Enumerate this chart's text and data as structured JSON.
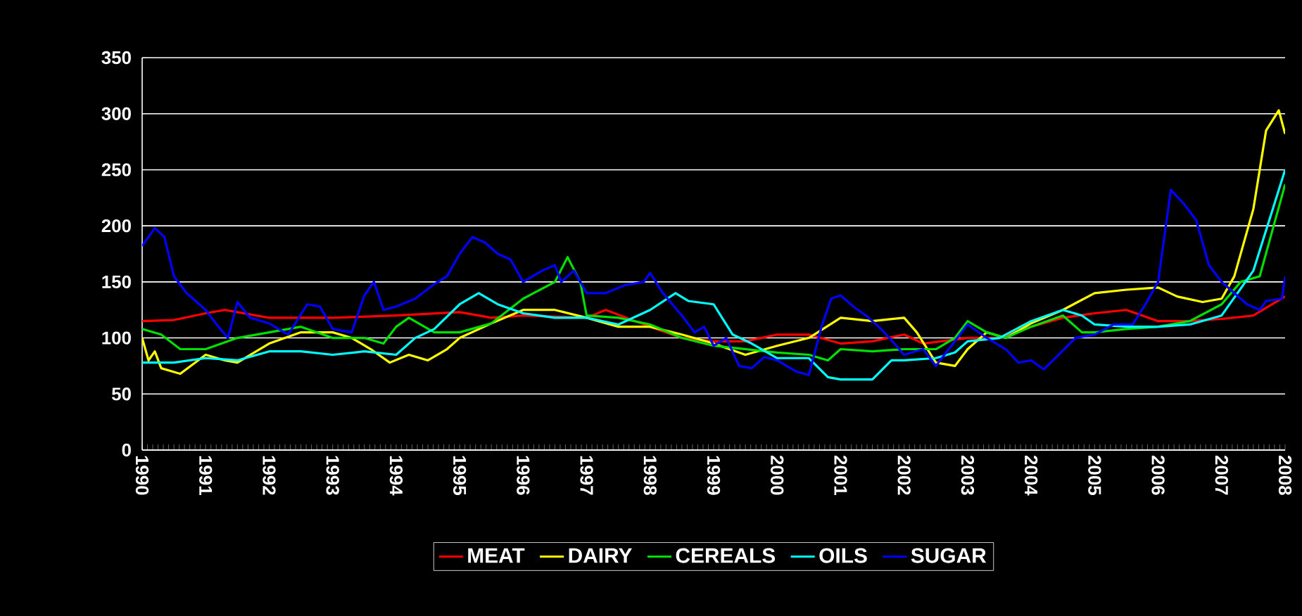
{
  "chart_data": {
    "type": "line",
    "xlim": [
      1990,
      2008
    ],
    "ylim": [
      0,
      350
    ],
    "xticks": [
      1990,
      1991,
      1992,
      1993,
      1994,
      1995,
      1996,
      1997,
      1998,
      1999,
      2000,
      2001,
      2002,
      2003,
      2004,
      2005,
      2006,
      2007,
      2008
    ],
    "yticks": [
      0,
      50,
      100,
      150,
      200,
      250,
      300,
      350
    ],
    "grid": "y",
    "legend": "bottom",
    "marker": "none",
    "line_style": "solid",
    "series": [
      {
        "name": "MEAT",
        "color": "#ff0000",
        "x": [
          1990,
          1990.5,
          1991,
          1991.3,
          1992,
          1993,
          1994,
          1995,
          1995.5,
          1996,
          1997,
          1997.3,
          1998,
          1998.5,
          1999,
          1999.5,
          2000,
          2000.5,
          2001,
          2001.5,
          2002,
          2002.3,
          2003,
          2003.5,
          2004,
          2004.5,
          2005,
          2005.5,
          2006,
          2006.5,
          2007,
          2007.5,
          2008
        ],
        "values": [
          115,
          116,
          122,
          125,
          118,
          118,
          120,
          123,
          118,
          120,
          118,
          125,
          110,
          100,
          97,
          97,
          103,
          103,
          95,
          97,
          103,
          95,
          100,
          100,
          110,
          118,
          122,
          125,
          115,
          115,
          117,
          120,
          137
        ]
      },
      {
        "name": "DAIRY",
        "color": "#ffff00",
        "x": [
          1990,
          1990.1,
          1990.2,
          1990.3,
          1990.6,
          1991,
          1991.3,
          1991.5,
          1992,
          1992.5,
          1993,
          1993.3,
          1993.6,
          1993.9,
          1994.2,
          1994.5,
          1994.8,
          1995,
          1995.5,
          1996,
          1996.5,
          1997,
          1997.5,
          1998,
          1998.5,
          1999,
          1999.5,
          2000,
          2000.5,
          2001,
          2001.5,
          2002,
          2002.2,
          2002.5,
          2002.8,
          2003,
          2003.3,
          2003.6,
          2004,
          2004.5,
          2005,
          2005.5,
          2006,
          2006.3,
          2006.7,
          2007,
          2007.2,
          2007.5,
          2007.7,
          2007.9,
          2008
        ],
        "values": [
          100,
          80,
          88,
          73,
          68,
          85,
          80,
          78,
          95,
          105,
          105,
          100,
          90,
          78,
          85,
          80,
          90,
          100,
          113,
          125,
          125,
          118,
          110,
          110,
          103,
          95,
          85,
          93,
          100,
          118,
          115,
          118,
          105,
          78,
          75,
          90,
          105,
          100,
          113,
          125,
          140,
          143,
          145,
          137,
          132,
          135,
          155,
          215,
          285,
          303,
          282
        ]
      },
      {
        "name": "CEREALS",
        "color": "#00e000",
        "x": [
          1990,
          1990.3,
          1990.6,
          1991,
          1991.5,
          1992,
          1992.5,
          1993,
          1993.5,
          1993.8,
          1994,
          1994.2,
          1994.6,
          1995,
          1995.5,
          1996,
          1996.5,
          1996.7,
          1996.9,
          1997,
          1997.5,
          1998,
          1998.5,
          1999,
          1999.5,
          2000,
          2000.5,
          2000.8,
          2001,
          2001.5,
          2002,
          2002.5,
          2002.8,
          2003,
          2003.3,
          2003.6,
          2004,
          2004.5,
          2004.8,
          2005,
          2005.5,
          2006,
          2006.5,
          2007,
          2007.3,
          2007.6,
          2008
        ],
        "values": [
          108,
          103,
          90,
          90,
          100,
          105,
          110,
          100,
          100,
          95,
          110,
          118,
          105,
          105,
          113,
          135,
          150,
          172,
          150,
          120,
          118,
          112,
          100,
          93,
          90,
          87,
          85,
          80,
          90,
          88,
          90,
          90,
          100,
          115,
          105,
          100,
          110,
          120,
          105,
          105,
          108,
          110,
          115,
          130,
          150,
          155,
          237
        ]
      },
      {
        "name": "OILS",
        "color": "#00ffff",
        "x": [
          1990,
          1990.5,
          1991,
          1991.5,
          1992,
          1992.5,
          1993,
          1993.5,
          1994,
          1994.3,
          1994.6,
          1995,
          1995.3,
          1995.6,
          1996,
          1996.5,
          1997,
          1997.5,
          1998,
          1998.4,
          1998.6,
          1999,
          1999.3,
          1999.6,
          2000,
          2000.5,
          2000.8,
          2001,
          2001.5,
          2001.8,
          2002,
          2002.5,
          2002.8,
          2003,
          2003.5,
          2004,
          2004.5,
          2004.8,
          2005,
          2005.5,
          2006,
          2006.5,
          2007,
          2007.5,
          2008
        ],
        "values": [
          78,
          78,
          82,
          80,
          88,
          88,
          85,
          88,
          85,
          100,
          108,
          130,
          140,
          130,
          122,
          118,
          118,
          112,
          125,
          140,
          133,
          130,
          103,
          95,
          82,
          82,
          65,
          63,
          63,
          80,
          80,
          82,
          87,
          97,
          100,
          115,
          125,
          120,
          112,
          110,
          110,
          112,
          120,
          160,
          250
        ]
      },
      {
        "name": "SUGAR",
        "color": "#0000ff",
        "x": [
          1990,
          1990.2,
          1990.35,
          1990.5,
          1990.7,
          1991,
          1991.2,
          1991.35,
          1991.5,
          1991.7,
          1992,
          1992.3,
          1992.6,
          1992.8,
          1993,
          1993.3,
          1993.5,
          1993.65,
          1993.8,
          1994,
          1994.3,
          1994.6,
          1994.8,
          1995,
          1995.2,
          1995.4,
          1995.6,
          1995.8,
          1996,
          1996.3,
          1996.5,
          1996.6,
          1996.8,
          1997,
          1997.3,
          1997.6,
          1997.9,
          1998,
          1998.2,
          1998.5,
          1998.7,
          1998.85,
          1999,
          1999.2,
          1999.4,
          1999.6,
          1999.8,
          2000,
          2000.3,
          2000.5,
          2000.7,
          2000.85,
          2001,
          2001.2,
          2001.4,
          2001.6,
          2001.8,
          2002,
          2002.3,
          2002.5,
          2003,
          2003.3,
          2003.6,
          2003.8,
          2004,
          2004.2,
          2004.4,
          2004.7,
          2005,
          2005.3,
          2005.6,
          2005.8,
          2006,
          2006.2,
          2006.4,
          2006.6,
          2006.8,
          2007,
          2007.2,
          2007.4,
          2007.6,
          2007.7,
          2007.95,
          2008
        ],
        "values": [
          182,
          198,
          190,
          155,
          140,
          125,
          110,
          100,
          132,
          118,
          113,
          103,
          130,
          128,
          108,
          105,
          138,
          150,
          125,
          128,
          135,
          148,
          155,
          175,
          190,
          185,
          175,
          170,
          150,
          160,
          165,
          150,
          160,
          140,
          140,
          147,
          150,
          158,
          140,
          120,
          105,
          110,
          93,
          100,
          75,
          73,
          83,
          80,
          70,
          67,
          110,
          135,
          138,
          128,
          120,
          110,
          98,
          85,
          90,
          75,
          112,
          100,
          90,
          78,
          80,
          72,
          83,
          100,
          103,
          112,
          112,
          130,
          150,
          232,
          220,
          205,
          165,
          150,
          140,
          130,
          125,
          133,
          135,
          155
        ]
      }
    ]
  }
}
